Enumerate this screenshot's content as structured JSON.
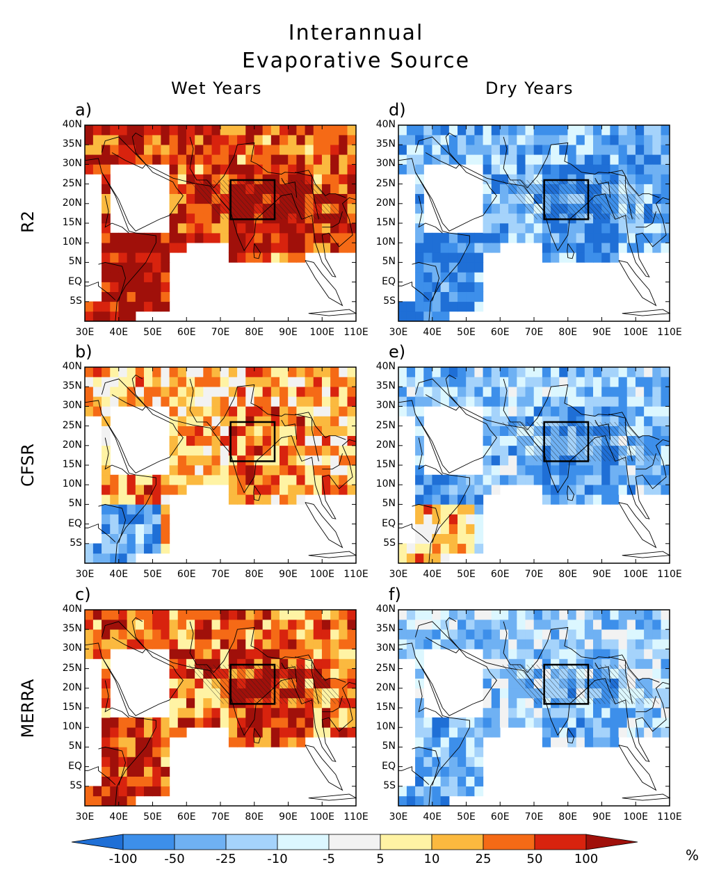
{
  "title": {
    "line1": "Interannual",
    "line2": "Evaporative Source"
  },
  "columns": [
    "Wet Years",
    "Dry Years"
  ],
  "rows": [
    "R2",
    "CFSR",
    "MERRA"
  ],
  "panels": [
    {
      "label": "a)",
      "dataset": "R2",
      "period": "Wet Years",
      "tone": 1.0,
      "box_anomaly": "strong-positive"
    },
    {
      "label": "d)",
      "dataset": "R2",
      "period": "Dry Years",
      "tone": -0.8,
      "box_anomaly": "negative"
    },
    {
      "label": "b)",
      "dataset": "CFSR",
      "period": "Wet Years",
      "tone": 0.5,
      "box_anomaly": "weak"
    },
    {
      "label": "e)",
      "dataset": "CFSR",
      "period": "Dry Years",
      "tone": -0.7,
      "box_anomaly": "negative"
    },
    {
      "label": "c)",
      "dataset": "MERRA",
      "period": "Wet Years",
      "tone": 0.8,
      "box_anomaly": "strong-positive"
    },
    {
      "label": "f)",
      "dataset": "MERRA",
      "period": "Dry Years",
      "tone": -0.5,
      "box_anomaly": "weak-negative"
    }
  ],
  "axes": {
    "lat_ticks": [
      "40N",
      "35N",
      "30N",
      "25N",
      "20N",
      "15N",
      "10N",
      "5N",
      "EQ",
      "5S"
    ],
    "lon_ticks": [
      "30E",
      "40E",
      "50E",
      "60E",
      "70E",
      "80E",
      "90E",
      "100E",
      "110E"
    ],
    "lon_range": [
      30,
      110
    ],
    "lat_range": [
      -10,
      40
    ]
  },
  "region_box": {
    "lon": [
      73,
      86
    ],
    "lat": [
      16,
      26
    ]
  },
  "colorbar": {
    "labels": [
      "-100",
      "-50",
      "-25",
      "-10",
      "-5",
      "5",
      "10",
      "25",
      "50",
      "100"
    ],
    "unit": "%",
    "colors": [
      "#1f6fd6",
      "#3d8fea",
      "#6fb1f3",
      "#a5d3fb",
      "#dcf7ff",
      "#f2f2f2",
      "#fff3a4",
      "#fbb93f",
      "#f56a16",
      "#d8230e",
      "#a0100a"
    ]
  }
}
